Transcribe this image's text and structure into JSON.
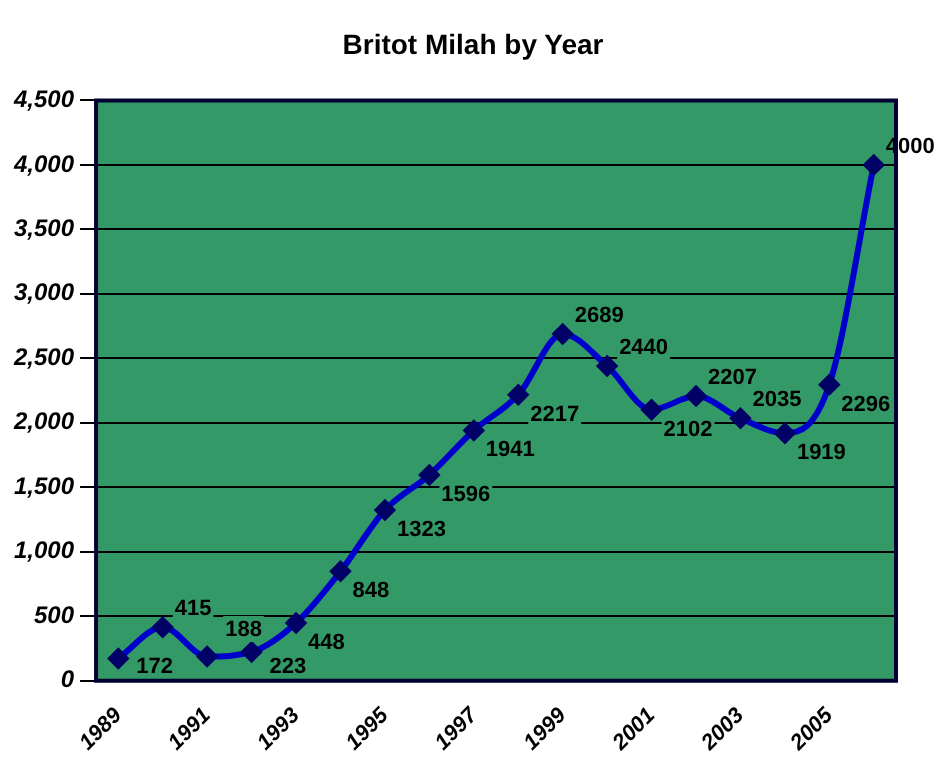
{
  "chart_data": {
    "type": "line",
    "title": "Britot Milah by Year",
    "categories": [
      "1989",
      null,
      "1991",
      null,
      "1993",
      null,
      "1995",
      null,
      "1997",
      null,
      "1999",
      null,
      "2001",
      null,
      "2003",
      null,
      "2005",
      null
    ],
    "series": [
      {
        "color": "#0000cc",
        "values": [
          172,
          415,
          188,
          223,
          448,
          848,
          1323,
          1596,
          1941,
          2217,
          2689,
          2440,
          2102,
          2207,
          2035,
          1919,
          2296,
          4000
        ]
      }
    ],
    "ylim": [
      0,
      4500
    ],
    "yticks": [
      {
        "value": 0,
        "label": "0"
      },
      {
        "value": 500,
        "label": "500"
      },
      {
        "value": 1000,
        "label": "1,000"
      },
      {
        "value": 1500,
        "label": "1,500"
      },
      {
        "value": 2000,
        "label": "2,000"
      },
      {
        "value": 2500,
        "label": "2,500"
      },
      {
        "value": 3000,
        "label": "3,000"
      },
      {
        "value": 3500,
        "label": "3,500"
      },
      {
        "value": 4000,
        "label": "4,000"
      },
      {
        "value": 4500,
        "label": "4,500"
      }
    ],
    "grid": "y",
    "legend": false,
    "marker": "diamond",
    "data_labels": true
  }
}
